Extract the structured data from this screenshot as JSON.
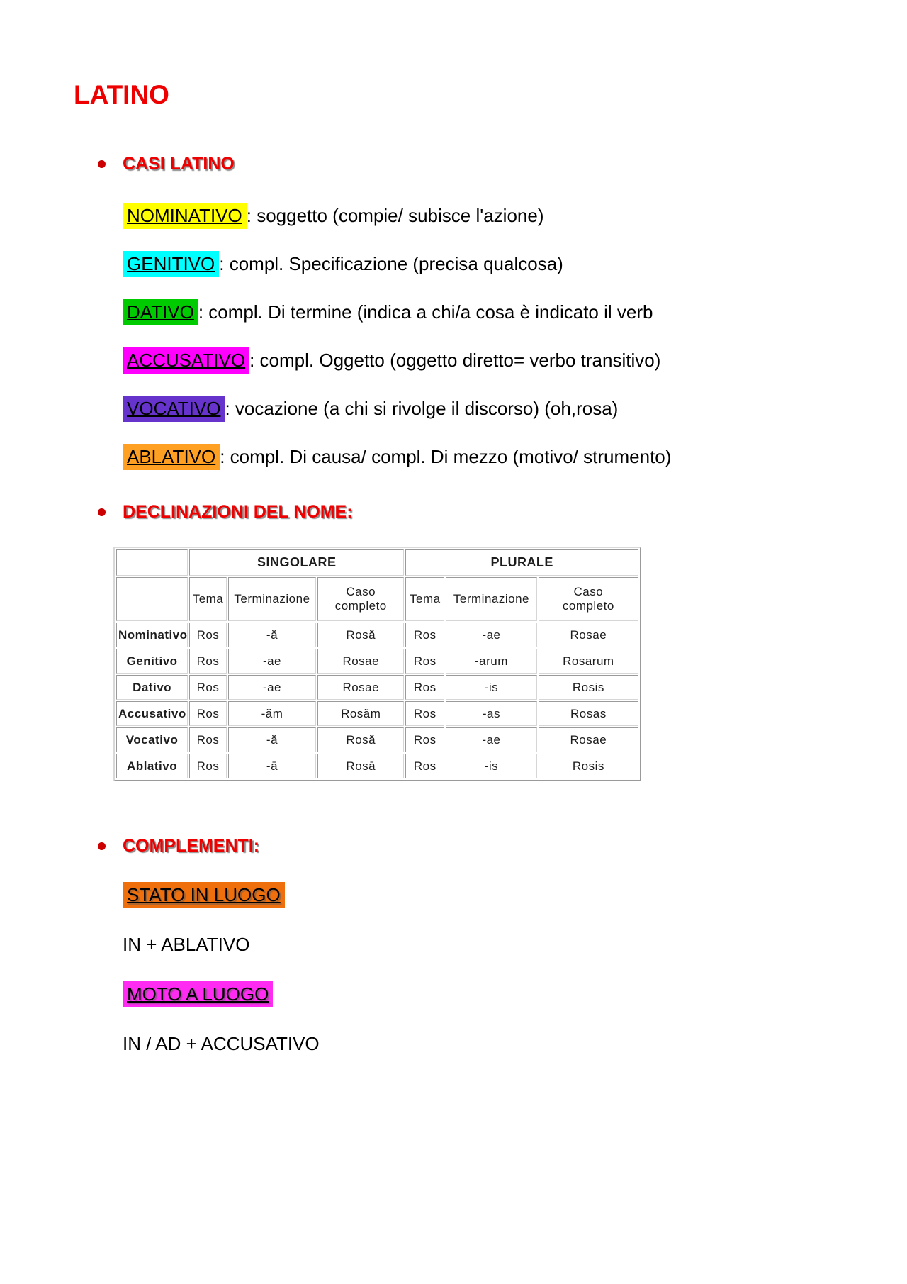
{
  "colors": {
    "heading_red": "#ee0000",
    "bullet_red": "#cc0000"
  },
  "page": {
    "title": "LATINO"
  },
  "sections": {
    "casi": {
      "heading": "CASI LATINO",
      "items": [
        {
          "label": "NOMINATIVO",
          "highlight": "#ffff00",
          "text": ": soggetto (compie/ subisce l'azione)"
        },
        {
          "label": "GENITIVO",
          "highlight": "#00ffff",
          "text": ": compl. Specificazione (precisa qualcosa)"
        },
        {
          "label": "DATIVO",
          "highlight": "#00cb00",
          "text": ": compl. Di termine (indica a chi/a cosa è indicato il verb"
        },
        {
          "label": "ACCUSATIVO",
          "highlight": "#ff00ff",
          "text": ": compl. Oggetto (oggetto diretto= verbo transitivo)"
        },
        {
          "label": "VOCATIVO",
          "highlight": "#6633cc",
          "text": ": vocazione (a chi si rivolge il discorso) (oh,rosa)"
        },
        {
          "label": "ABLATIVO",
          "highlight": "#ffa022",
          "text": ": compl. Di causa/ compl. Di mezzo (motivo/ strumento)"
        }
      ]
    },
    "declinazioni": {
      "heading": "DECLINAZIONI DEL NOME:",
      "table": {
        "group_headers": [
          "SINGOLARE",
          "PLURALE"
        ],
        "col_headers": [
          "Tema",
          "Terminazione",
          "Caso\ncompleto",
          "Tema",
          "Terminazione",
          "Caso\ncompleto"
        ],
        "rows": [
          {
            "case": "Nominativo",
            "cells": [
              "Ros",
              "-ă",
              "Rosă",
              "Ros",
              "-ae",
              "Rosae"
            ]
          },
          {
            "case": "Genitivo",
            "cells": [
              "Ros",
              "-ae",
              "Rosae",
              "Ros",
              "-arum",
              "Rosarum"
            ]
          },
          {
            "case": "Dativo",
            "cells": [
              "Ros",
              "-ae",
              "Rosae",
              "Ros",
              "-is",
              "Rosis"
            ]
          },
          {
            "case": "Accusativo",
            "cells": [
              "Ros",
              "-ăm",
              "Rosăm",
              "Ros",
              "-as",
              "Rosas"
            ]
          },
          {
            "case": "Vocativo",
            "cells": [
              "Ros",
              "-ă",
              "Rosă",
              "Ros",
              "-ae",
              "Rosae"
            ]
          },
          {
            "case": "Ablativo",
            "cells": [
              "Ros",
              "-ā",
              "Rosā",
              "Ros",
              "-is",
              "Rosis"
            ]
          }
        ]
      }
    },
    "complementi": {
      "heading": "COMPLEMENTI:",
      "entries": [
        {
          "text": "STATO IN LUOGO",
          "highlight": "#ef6f0c"
        },
        {
          "text": "IN + ABLATIVO",
          "highlight": null
        },
        {
          "text": "MOTO A LUOGO",
          "highlight": "#ff2bf2"
        },
        {
          "text": "IN / AD + ACCUSATIVO",
          "highlight": null
        }
      ]
    }
  }
}
